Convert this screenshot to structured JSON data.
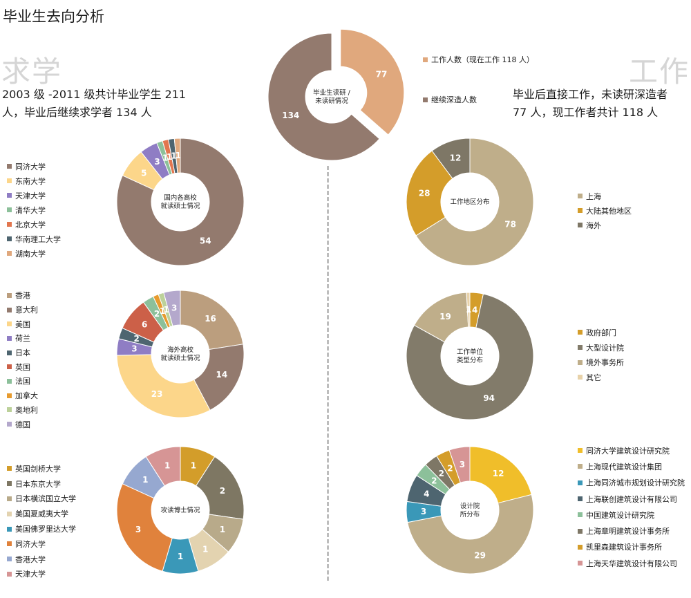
{
  "page": {
    "title": "毕业生去向分析",
    "left_word": "求学",
    "right_word": "工作",
    "left_desc_line1": "2003 级 -2011 级共计毕业学生 211",
    "left_desc_line2": "人，毕业后继续求学者 134 人",
    "right_desc_line1": "毕业后直接工作，未读研深造者",
    "right_desc_line2": "77 人，现工作者共计 118 人"
  },
  "chart_data": [
    {
      "id": "top",
      "type": "pie",
      "center_label": [
        "毕业生读研 /",
        "未读研情况"
      ],
      "categories": [
        "工作人数（现在工作 118 人）",
        "继续深造人数"
      ],
      "values": [
        77,
        134
      ],
      "colors": [
        "#e0a87d",
        "#937a6e"
      ],
      "legend_placement": "right"
    },
    {
      "id": "domestic",
      "type": "pie",
      "center_label": [
        "国内各高校",
        "就读硕士情况"
      ],
      "categories": [
        "同济大学",
        "东南大学",
        "天津大学",
        "清华大学",
        "北京大学",
        "华南理工大学",
        "湖南大学"
      ],
      "values": [
        54,
        5,
        3,
        1,
        1,
        1,
        1
      ],
      "colors": [
        "#937a6e",
        "#fcd68a",
        "#8f7dc4",
        "#8cc09a",
        "#e2764f",
        "#4e6570",
        "#e0a87d"
      ],
      "legend_placement": "left"
    },
    {
      "id": "overseas",
      "type": "pie",
      "center_label": [
        "海外高校",
        "就读硕士情况"
      ],
      "categories": [
        "香港",
        "意大利",
        "美国",
        "荷兰",
        "日本",
        "英国",
        "法国",
        "加拿大",
        "奥地利",
        "德国"
      ],
      "values": [
        16,
        14,
        23,
        3,
        2,
        6,
        2,
        1,
        1,
        3
      ],
      "colors": [
        "#bb9e7e",
        "#937a6e",
        "#fcd68a",
        "#8f7dc4",
        "#4e6570",
        "#cc6048",
        "#8cc09a",
        "#e79b2f",
        "#bcd19a",
        "#b4a8cc"
      ],
      "legend_placement": "left"
    },
    {
      "id": "phd",
      "type": "pie",
      "center_label": [
        "攻读博士情况"
      ],
      "categories": [
        "英国剑桥大学",
        "日本东京大学",
        "日本横滨国立大学",
        "美国夏威夷大学",
        "美国佛罗里达大学",
        "同济大学",
        "香港大学",
        "天津大学"
      ],
      "values": [
        1,
        2,
        1,
        1,
        1,
        3,
        1,
        1
      ],
      "colors": [
        "#d39d2a",
        "#7e7763",
        "#b8aa8a",
        "#e3d3b0",
        "#3a98b8",
        "#e0823c",
        "#96a8d0",
        "#d69595"
      ],
      "legend_placement": "left"
    },
    {
      "id": "region",
      "type": "pie",
      "center_label": [
        "工作地区分布"
      ],
      "categories": [
        "上海",
        "大陆其他地区",
        "海外"
      ],
      "values": [
        78,
        28,
        12
      ],
      "colors": [
        "#bfae8a",
        "#d49d2a",
        "#7e7766"
      ],
      "legend_placement": "right"
    },
    {
      "id": "unittype",
      "type": "pie",
      "center_label": [
        "工作单位",
        "类型分布"
      ],
      "categories": [
        "政府部门",
        "大型设计院",
        "境外事务所",
        "其它"
      ],
      "values": [
        4,
        94,
        19,
        1
      ],
      "colors": [
        "#d49d2a",
        "#827b6a",
        "#bfae8a",
        "#e8d2a9"
      ],
      "legend_placement": "right"
    },
    {
      "id": "institute",
      "type": "pie",
      "center_label": [
        "设计院",
        "所分布"
      ],
      "categories": [
        "同济大学建筑设计研究院",
        "上海现代建筑设计集团",
        "上海同济城市规划设计研究院",
        "上海联创建筑设计有限公司",
        "中国建筑设计研究院",
        "上海章明建筑设计事务所",
        "凯里森建筑设计事务所",
        "上海天华建筑设计有限公司"
      ],
      "values": [
        12,
        29,
        3,
        4,
        2,
        2,
        2,
        3
      ],
      "colors": [
        "#f0be2a",
        "#bfae8a",
        "#3a98b8",
        "#4e6570",
        "#8cc09a",
        "#7e7766",
        "#d49d2a",
        "#d69595"
      ],
      "legend_placement": "right"
    }
  ]
}
